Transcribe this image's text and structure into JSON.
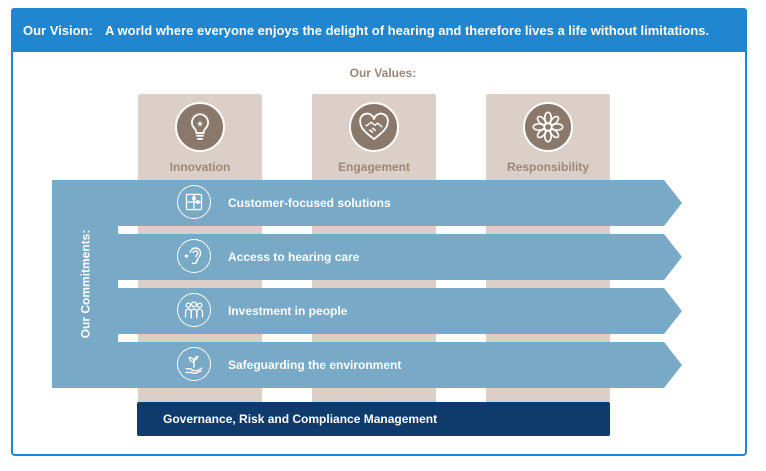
{
  "vision": {
    "label": "Our Vision:",
    "text": "A world where everyone enjoys the delight of hearing and therefore lives a life without limitations."
  },
  "values": {
    "title": "Our Values:",
    "items": [
      {
        "label": "Innovation",
        "icon": "lightbulb-icon"
      },
      {
        "label": "Engagement",
        "icon": "handshake-heart-icon"
      },
      {
        "label": "Responsibility",
        "icon": "flower-icon"
      }
    ]
  },
  "commitments": {
    "label": "Our Commitments:",
    "items": [
      {
        "label": "Customer-focused solutions",
        "icon": "puzzle-icon"
      },
      {
        "label": "Access to hearing care",
        "icon": "ear-icon"
      },
      {
        "label": "Investment in people",
        "icon": "people-icon"
      },
      {
        "label": "Safeguarding the environment",
        "icon": "plant-hand-icon"
      }
    ]
  },
  "governance": {
    "label": "Governance, Risk and Compliance Management"
  },
  "colors": {
    "vision_blue": "#1f86cf",
    "value_beige": "#dccfc7",
    "value_icon": "#8a786b",
    "value_text": "#9c8778",
    "commitment_blue": "#78a9c6",
    "governance_navy": "#0e3b6c"
  }
}
